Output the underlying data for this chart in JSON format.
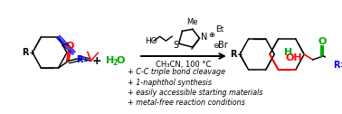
{
  "background_color": "#ffffff",
  "bullet_lines": [
    {
      "text": "+ C-C triple bond cleavage",
      "color": "#000000"
    },
    {
      "text": "+ 1-naphthol synthesis",
      "color": "#000000"
    },
    {
      "text": "+ easily accessible starting materials",
      "color": "#000000"
    },
    {
      "text": "+ metal-free reaction conditions",
      "color": "#000000"
    }
  ],
  "condition_text": "CH₃CN, 100 °C",
  "figsize": [
    3.78,
    1.26
  ],
  "dpi": 100,
  "lw": 1.1
}
